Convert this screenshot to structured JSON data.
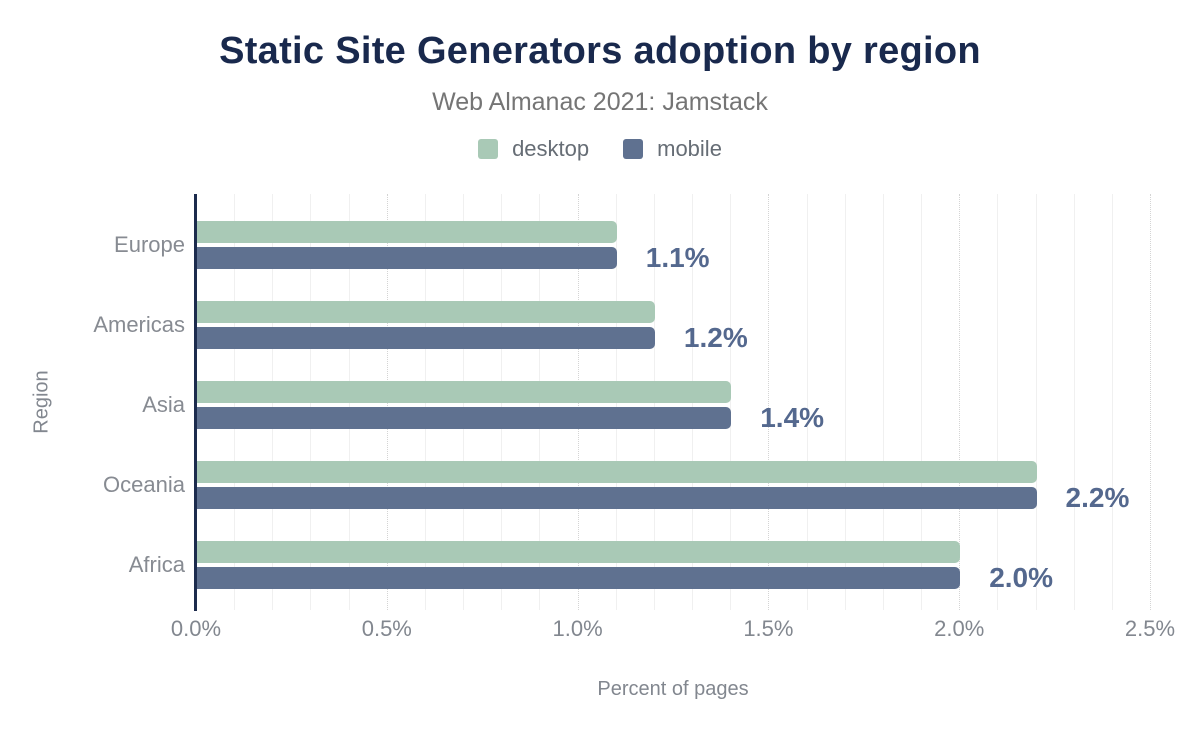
{
  "chart_data": {
    "type": "bar",
    "orientation": "horizontal",
    "title": "Static Site Generators adoption by region",
    "subtitle": "Web Almanac 2021: Jamstack",
    "categories": [
      "Europe",
      "Americas",
      "Asia",
      "Oceania",
      "Africa"
    ],
    "series": [
      {
        "name": "desktop",
        "color": "#a9c9b6",
        "values": [
          1.1,
          1.2,
          1.4,
          2.2,
          2.0
        ]
      },
      {
        "name": "mobile",
        "color": "#5f7190",
        "values": [
          1.1,
          1.2,
          1.4,
          2.2,
          2.0
        ]
      }
    ],
    "data_labels": [
      "1.1%",
      "1.2%",
      "1.4%",
      "2.2%",
      "2.0%"
    ],
    "xlabel": "Percent of pages",
    "ylabel": "Region",
    "xlim": [
      0,
      2.5
    ],
    "x_tick_labels": [
      "0.0%",
      "0.5%",
      "1.0%",
      "1.5%",
      "2.0%",
      "2.5%"
    ],
    "grid": {
      "minor_step": 0.1,
      "major_step": 0.5,
      "direction": "vertical"
    },
    "legend": {
      "position": "top",
      "entries": [
        "desktop",
        "mobile"
      ]
    },
    "colors": {
      "title": "#19294d",
      "subtitle": "#757575",
      "axis_line": "#1c2b4d",
      "data_label": "#54688e",
      "tick_label": "#82878f",
      "desktop": "#a9c9b6",
      "mobile": "#5f7190"
    }
  }
}
